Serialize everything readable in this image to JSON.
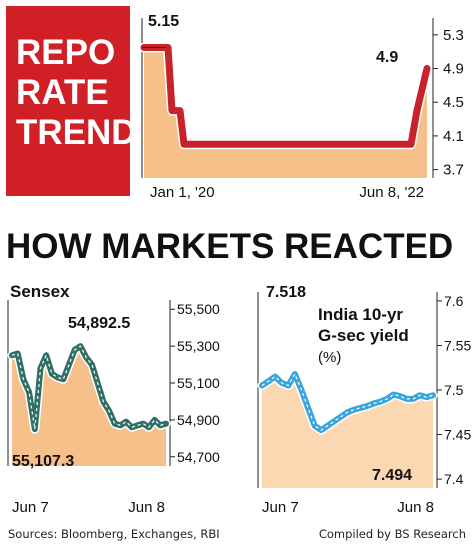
{
  "repo_panel": {
    "title_lines": [
      "REPO",
      "RATE",
      "TREND"
    ],
    "colors": {
      "title_bg": "#d01f25",
      "title_text": "#ffffff"
    }
  },
  "markets_title": "HOW MARKETS REACTED",
  "footer": {
    "sources": "Sources: Bloomberg, Exchanges, RBI",
    "compiled": "Compiled by BS Research"
  },
  "colors": {
    "red_line": "#c8222a",
    "area_fill": "#f6c08a",
    "area_fill_light": "#fbd8b2",
    "teal_line": "#2f6f66",
    "blue_line": "#3aa4dc",
    "axis": "#222222"
  },
  "chart_data": [
    {
      "type": "line",
      "name": "repo",
      "title": "",
      "x_tick_labels": [
        "Jan 1, '20",
        "Jun 8, '22"
      ],
      "y_ticks": [
        5.3,
        4.9,
        4.5,
        4.1,
        3.7
      ],
      "ylim": [
        3.6,
        5.5
      ],
      "series": [
        {
          "values": [
            5.15,
            5.15,
            4.4,
            4.4,
            4.0,
            4.0,
            4.0,
            4.4,
            4.9
          ]
        }
      ],
      "annotations": [
        "5.15",
        "4.9"
      ]
    },
    {
      "type": "area",
      "name": "sensex",
      "title": "Sensex",
      "x_tick_labels": [
        "Jun 7",
        "Jun 8"
      ],
      "y_ticks": [
        55500,
        55300,
        55100,
        54900,
        54700
      ],
      "ylim": [
        54650,
        55550
      ],
      "series": [
        {
          "values": [
            55250,
            55260,
            55120,
            55050,
            54850,
            55180,
            55250,
            55150,
            55130,
            55120,
            55200,
            55280,
            55300,
            55240,
            55200,
            55100,
            55000,
            54950,
            54880,
            54870,
            54890,
            54860,
            54870,
            54880,
            54860,
            54900,
            54870,
            54880
          ]
        }
      ],
      "annotations": [
        "54,892.5",
        "55,107.3"
      ]
    },
    {
      "type": "area",
      "name": "gsec",
      "title": "India 10-yr G-sec yield",
      "title_lines": [
        "India 10-yr",
        "G-sec yield",
        "(%)"
      ],
      "x_tick_labels": [
        "Jun 7",
        "Jun 8"
      ],
      "y_ticks": [
        7.6,
        7.55,
        7.5,
        7.45,
        7.4
      ],
      "ylim": [
        7.39,
        7.61
      ],
      "series": [
        {
          "values": [
            7.505,
            7.51,
            7.515,
            7.508,
            7.505,
            7.518,
            7.5,
            7.48,
            7.46,
            7.455,
            7.46,
            7.465,
            7.47,
            7.475,
            7.478,
            7.48,
            7.482,
            7.485,
            7.487,
            7.49,
            7.495,
            7.493,
            7.49,
            7.49,
            7.494,
            7.492,
            7.494
          ]
        }
      ],
      "annotations": [
        "7.518",
        "7.494"
      ]
    }
  ]
}
